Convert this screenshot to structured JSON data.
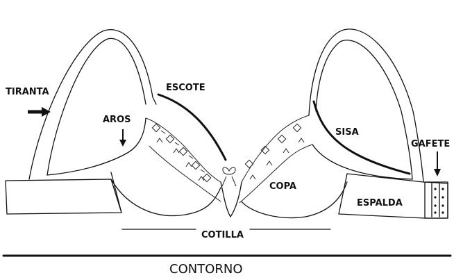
{
  "labels": {
    "tiranta": "TIRANTA",
    "escote": "ESCOTE",
    "aros": "AROS",
    "sisa": "SISA",
    "gafete": "GAFETE",
    "copa": "COPA",
    "espalda": "ESPALDA",
    "cotilla": "COTILLA",
    "contorno": "CONTORNO"
  }
}
